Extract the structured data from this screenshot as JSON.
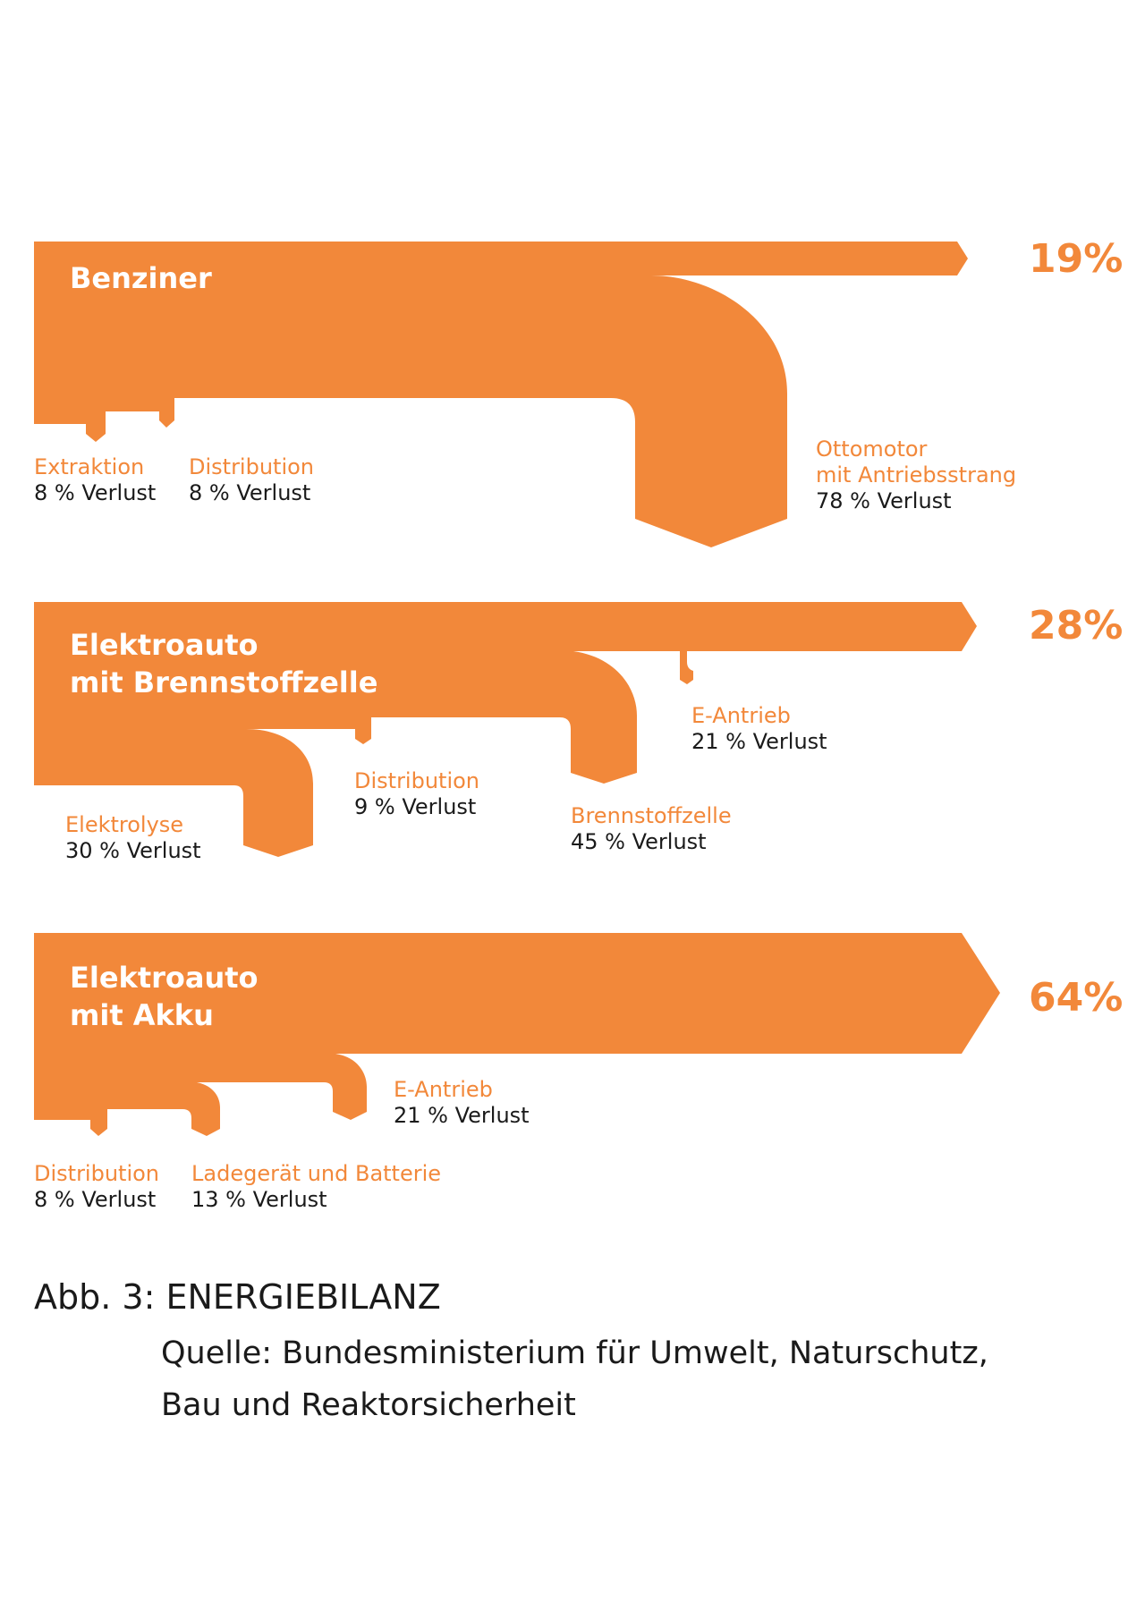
{
  "diagrams": [
    {
      "title_lines": [
        "Benziner"
      ],
      "efficiency": "19%",
      "losses": [
        {
          "name_lines": [
            "Extraktion"
          ],
          "value": "8 % Verlust"
        },
        {
          "name_lines": [
            "Distribution"
          ],
          "value": "8 % Verlust"
        },
        {
          "name_lines": [
            "Ottomotor",
            "mit Antriebsstrang"
          ],
          "value": "78 % Verlust"
        }
      ]
    },
    {
      "title_lines": [
        "Elektroauto",
        "mit Brennstoffzelle"
      ],
      "efficiency": "28%",
      "losses": [
        {
          "name_lines": [
            "Elektrolyse"
          ],
          "value": "30 % Verlust"
        },
        {
          "name_lines": [
            "Distribution"
          ],
          "value": "9 % Verlust"
        },
        {
          "name_lines": [
            "Brennstoffzelle"
          ],
          "value": "45 % Verlust"
        },
        {
          "name_lines": [
            "E-Antrieb"
          ],
          "value": "21 % Verlust"
        }
      ]
    },
    {
      "title_lines": [
        "Elektroauto",
        "mit Akku"
      ],
      "efficiency": "64%",
      "losses": [
        {
          "name_lines": [
            "Distribution"
          ],
          "value": "8 % Verlust"
        },
        {
          "name_lines": [
            "Ladegerät und Batterie"
          ],
          "value": "13 % Verlust"
        },
        {
          "name_lines": [
            "E-Antrieb"
          ],
          "value": "21 % Verlust"
        }
      ]
    }
  ],
  "caption": {
    "title": "Abb. 3: ENERGIEBILANZ",
    "source_lines": [
      "Quelle: Bundesministerium für Umwelt, Naturschutz,",
      "Bau und Reaktorsicherheit"
    ]
  },
  "colors": {
    "flow": "#f2883a",
    "loss_value_text": "#1a1a1a",
    "title_text": "#ffffff"
  }
}
